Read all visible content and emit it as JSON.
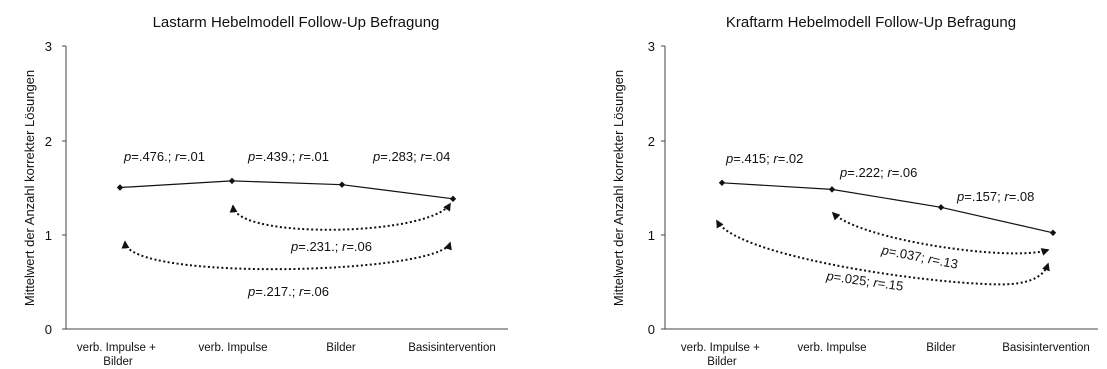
{
  "chart_data": [
    {
      "type": "line",
      "title": "Lastarm Hebelmodell Follow-Up Befragung",
      "ylabel": "Mittelwert der Anzahl korrekter Lösungen",
      "xlabel": "",
      "categories": [
        [
          "verb. Impulse +",
          "Bilder"
        ],
        [
          "verb. Impulse"
        ],
        [
          "Bilder"
        ],
        [
          "Basisintervention"
        ]
      ],
      "series": [
        {
          "values": [
            1.5,
            1.57,
            1.53,
            1.38
          ]
        }
      ],
      "ylim": [
        0,
        3
      ],
      "yticks": [
        "0",
        "1",
        "2",
        "3"
      ],
      "grid": false,
      "annotations": [
        {
          "p": ".476.",
          "r": ".01"
        },
        {
          "p": ".439.",
          "r": ".01"
        },
        {
          "p": ".283",
          "r": ".04"
        },
        {
          "p": ".231.",
          "r": ".06"
        },
        {
          "p": ".217.",
          "r": ".06"
        }
      ]
    },
    {
      "type": "line",
      "title": "Kraftarm Hebelmodell Follow-Up Befragung",
      "ylabel": "Mittelwert der Anzahl korrekter Lösungen",
      "xlabel": "",
      "categories": [
        [
          "verb. Impulse +",
          "Bilder"
        ],
        [
          "verb. Impulse"
        ],
        [
          "Bilder"
        ],
        [
          "Basisintervention"
        ]
      ],
      "series": [
        {
          "values": [
            1.55,
            1.48,
            1.29,
            1.02
          ]
        }
      ],
      "ylim": [
        0,
        3
      ],
      "yticks": [
        "0",
        "1",
        "2",
        "3"
      ],
      "grid": false,
      "annotations": [
        {
          "p": ".415",
          "r": ".02"
        },
        {
          "p": ".222",
          "r": ".06"
        },
        {
          "p": ".157",
          "r": ".08"
        },
        {
          "p": ".037",
          "r": ".13"
        },
        {
          "p": ".025",
          "r": ".15"
        }
      ]
    }
  ]
}
